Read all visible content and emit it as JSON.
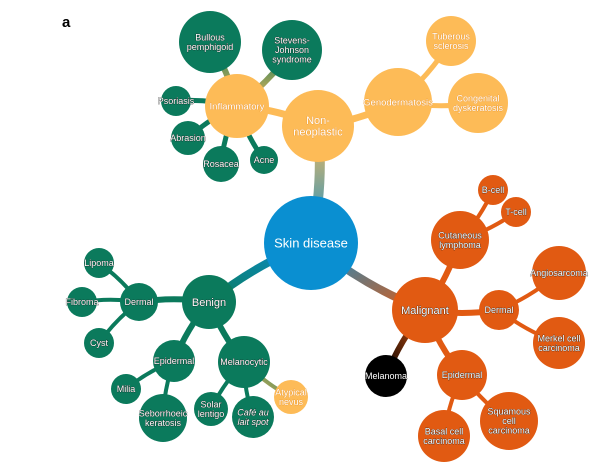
{
  "panel_label": "a",
  "colors": {
    "root": "#0a8fd1",
    "benign": "#0b7a5c",
    "non_neoplastic": "#fdbb57",
    "malignant": "#e15a12",
    "melanoma": "#000000",
    "label": "#ffffff"
  },
  "nodes": {
    "root": "Skin disease",
    "non_neoplastic": "Non-\nneoplastic",
    "inflammatory": "Inflammatory",
    "bullous": "Bullous\npemphigoid",
    "sjs": "Stevens-\nJohnson\nsyndrome",
    "psoriasis": "Psoriasis",
    "abrasion": "Abrasion",
    "rosacea": "Rosacea",
    "acne": "Acne",
    "genodermatosis": "Genodermatosis",
    "tuberous": "Tuberous\nsclerosis",
    "congenital": "Congenital\ndyskeratosis",
    "benign": "Benign",
    "benign_dermal": "Dermal",
    "lipoma": "Lipoma",
    "fibroma": "Fibroma",
    "cyst": "Cyst",
    "benign_epidermal": "Epidermal",
    "milia": "Milia",
    "seborrhoeic": "Seborrhoeic\nkeratosis",
    "melanocytic": "Melanocytic",
    "solar": "Solar\nlentigo",
    "cafe": "Café au\nlait spot",
    "atypical": "Atypical\nnevus",
    "malignant": "Malignant",
    "cutaneous": "Cutaneous\nlymphoma",
    "bcell": "B-cell",
    "tcell": "T-cell",
    "mal_dermal": "Dermal",
    "angiosarcoma": "Angiosarcoma",
    "merkel": "Merkel cell\ncarcinoma",
    "melanoma": "Melanoma",
    "mal_epidermal": "Epidermal",
    "squamous": "Squamous\ncell\ncarcinoma",
    "basal": "Basal cell\ncarcinoma"
  }
}
